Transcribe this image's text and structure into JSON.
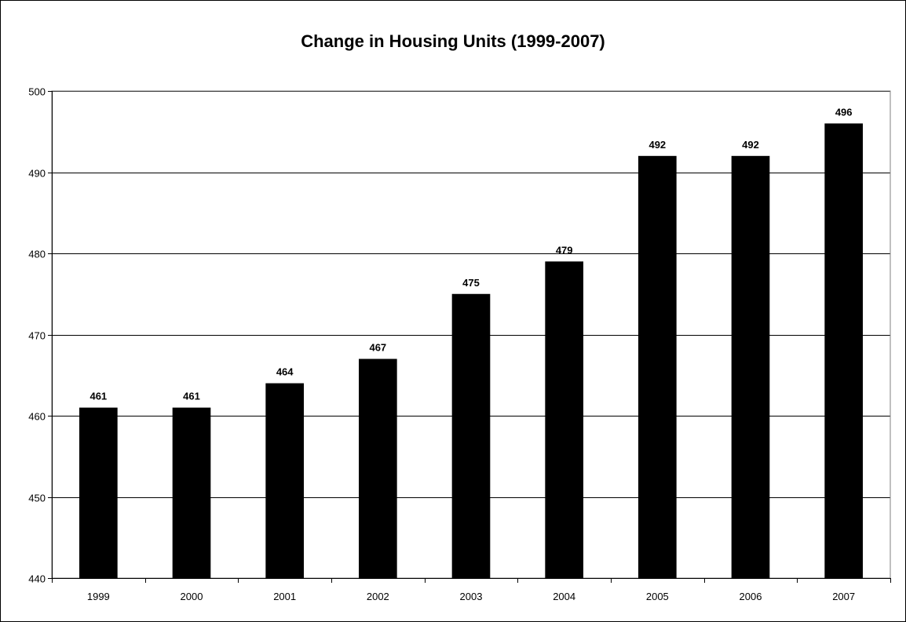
{
  "chart_data": {
    "type": "bar",
    "title": "Change in Housing Units (1999-2007)",
    "categories": [
      "1999",
      "2000",
      "2001",
      "2002",
      "2003",
      "2004",
      "2005",
      "2006",
      "2007"
    ],
    "values": [
      461,
      461,
      464,
      467,
      475,
      479,
      492,
      492,
      496
    ],
    "data_labels": [
      "461",
      "461",
      "464",
      "467",
      "475",
      "479",
      "492",
      "492",
      "496"
    ],
    "ylim": [
      440,
      500
    ],
    "yticks": [
      440,
      450,
      460,
      470,
      480,
      490,
      500
    ],
    "ytick_labels": [
      "440",
      "450",
      "460",
      "470",
      "480",
      "490",
      "500"
    ],
    "xlabel": "",
    "ylabel": "",
    "grid": true,
    "legend": "none",
    "bar_color": "#000000"
  }
}
